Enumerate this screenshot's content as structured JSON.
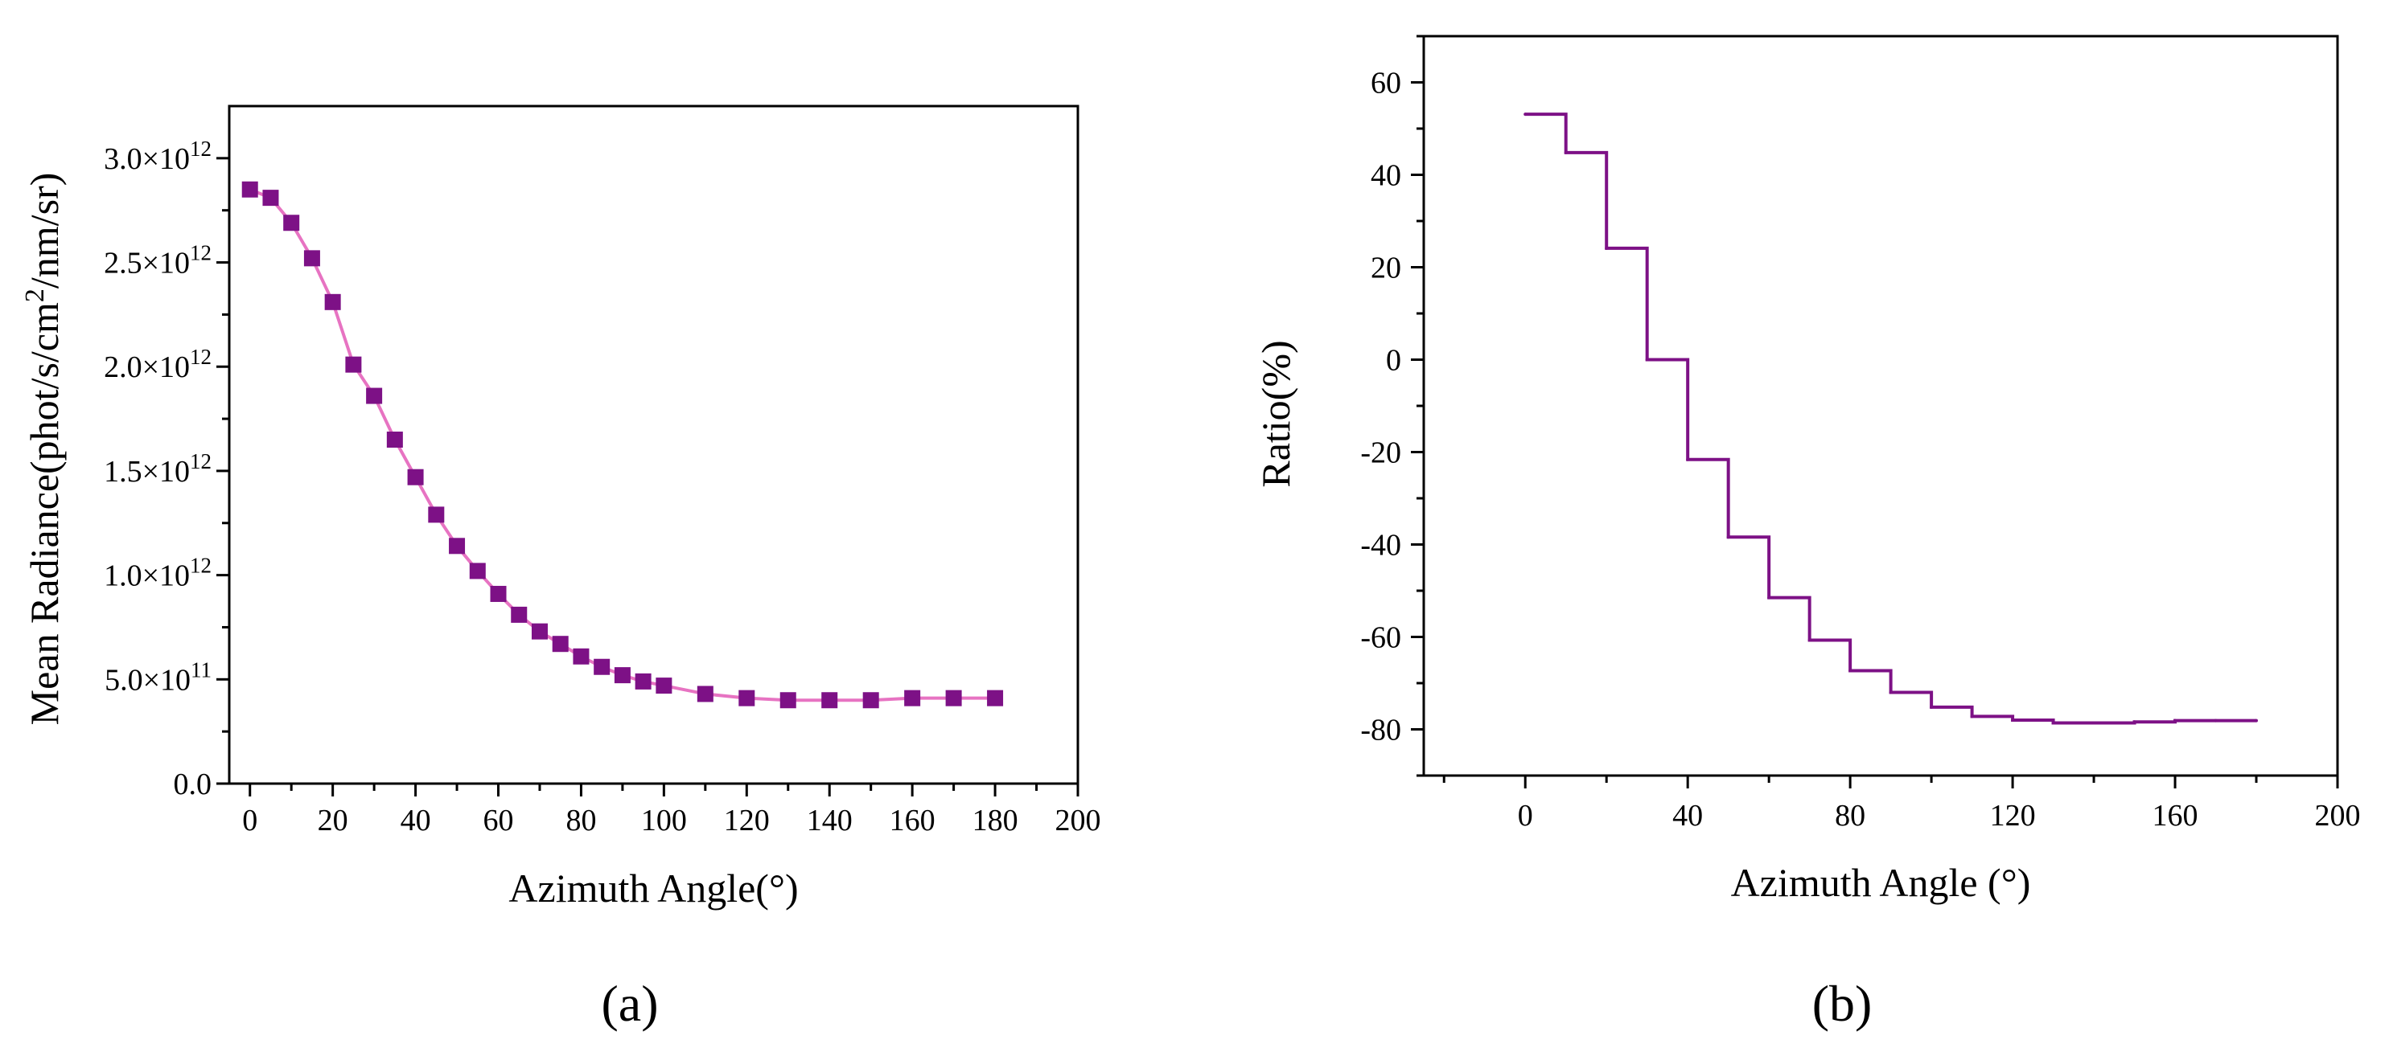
{
  "chart_data": [
    {
      "type": "line",
      "caption": "(a)",
      "xlabel": "Azimuth Angle(°)",
      "ylabel": "Mean Radiance(phot/s/cm²/nm/sr)",
      "xlim": [
        -5,
        200
      ],
      "ylim": [
        0,
        3250000000000.0
      ],
      "xticks": [
        0,
        20,
        40,
        60,
        80,
        100,
        120,
        140,
        160,
        180,
        200
      ],
      "yticks": [
        {
          "value": 0,
          "mantissa": "0.0",
          "exponent": ""
        },
        {
          "value": 500000000000.0,
          "mantissa": "5.0×10",
          "exponent": "11"
        },
        {
          "value": 1000000000000.0,
          "mantissa": "1.0×10",
          "exponent": "12"
        },
        {
          "value": 1500000000000.0,
          "mantissa": "1.5×10",
          "exponent": "12"
        },
        {
          "value": 2000000000000.0,
          "mantissa": "2.0×10",
          "exponent": "12"
        },
        {
          "value": 2500000000000.0,
          "mantissa": "2.5×10",
          "exponent": "12"
        },
        {
          "value": 3000000000000.0,
          "mantissa": "3.0×10",
          "exponent": "12"
        }
      ],
      "line_color": "#e773c2",
      "marker_color": "#7d1186",
      "marker": "square",
      "x": [
        0,
        5,
        10,
        15,
        20,
        25,
        30,
        35,
        40,
        45,
        50,
        55,
        60,
        65,
        70,
        75,
        80,
        85,
        90,
        95,
        100,
        110,
        120,
        130,
        140,
        150,
        160,
        170,
        180
      ],
      "y": [
        2850000000000.0,
        2810000000000.0,
        2690000000000.0,
        2520000000000.0,
        2310000000000.0,
        2010000000000.0,
        1860000000000.0,
        1650000000000.0,
        1470000000000.0,
        1290000000000.0,
        1140000000000.0,
        1020000000000.0,
        910000000000.0,
        810000000000.0,
        730000000000.0,
        670000000000.0,
        610000000000.0,
        560000000000.0,
        520000000000.0,
        490000000000.0,
        470000000000.0,
        430000000000.0,
        410000000000.0,
        400000000000.0,
        400000000000.0,
        400000000000.0,
        410000000000.0,
        410000000000.0,
        410000000000.0
      ]
    },
    {
      "type": "line",
      "step": "post",
      "caption": "(b)",
      "xlabel": "Azimuth Angle (°)",
      "ylabel": "Ratio(%)",
      "xlim": [
        -25,
        200
      ],
      "ylim": [
        -90,
        70
      ],
      "xticks": [
        0,
        40,
        80,
        120,
        160,
        200
      ],
      "yticks": [
        -80,
        -60,
        -40,
        -20,
        0,
        20,
        40,
        60
      ],
      "line_color": "#7d1186",
      "x": [
        0,
        10,
        20,
        30,
        40,
        50,
        60,
        70,
        80,
        90,
        100,
        110,
        120,
        130,
        140,
        150,
        160,
        170,
        180
      ],
      "y": [
        53.1,
        44.8,
        24.1,
        0,
        -21.6,
        -38.4,
        -51.5,
        -60.7,
        -67.3,
        -72.0,
        -75.2,
        -77.2,
        -78.0,
        -78.6,
        -78.6,
        -78.4,
        -78.1,
        -78.1,
        -78.1
      ]
    }
  ]
}
